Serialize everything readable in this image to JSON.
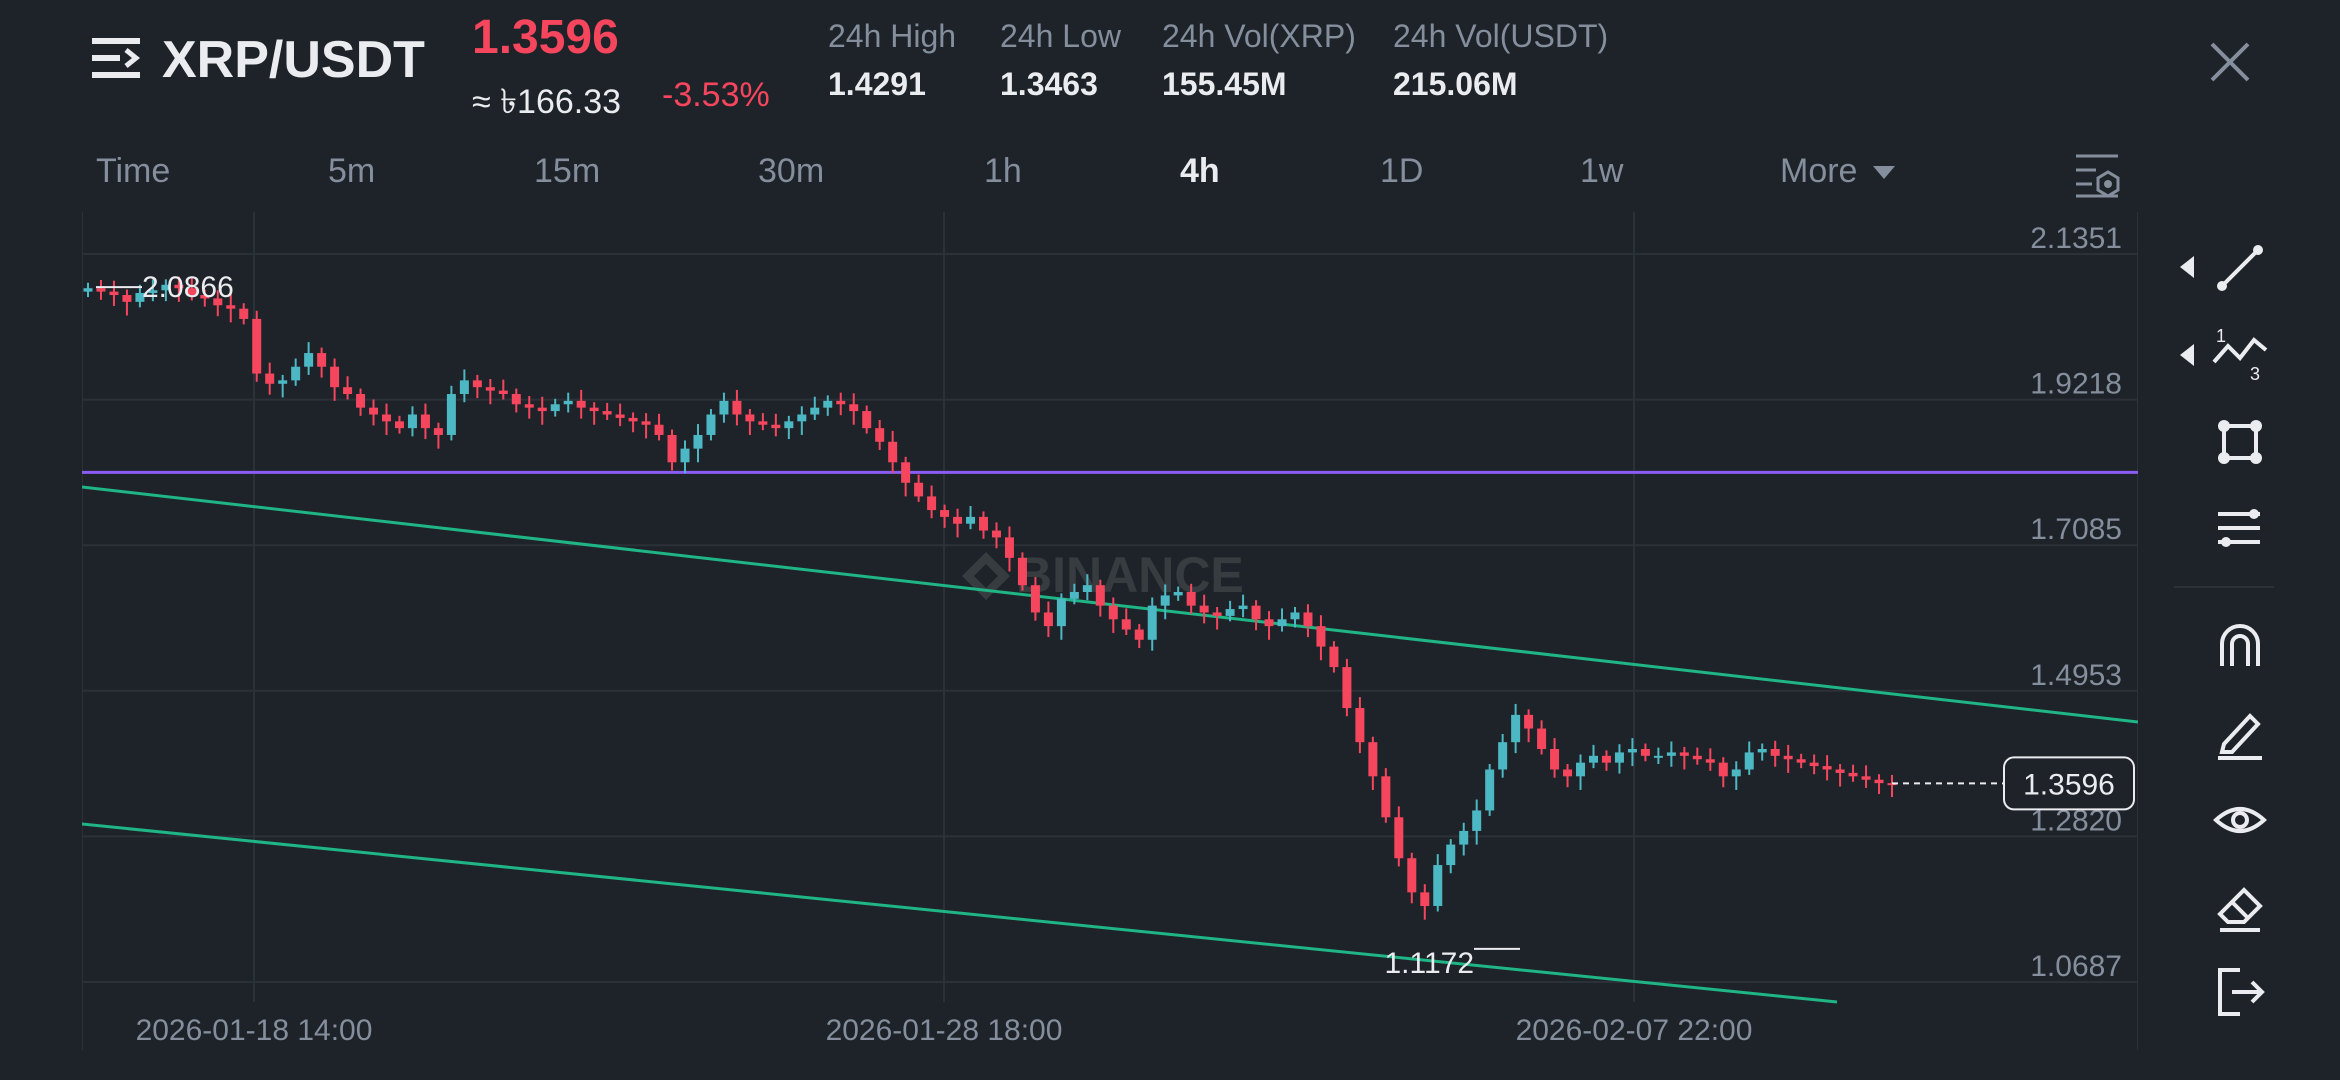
{
  "header": {
    "pair": "XRP/USDT",
    "price": "1.3596",
    "fiat_price": "≈ ৳166.33",
    "change": "-3.53%",
    "stats": [
      {
        "label": "24h High",
        "value": "1.4291"
      },
      {
        "label": "24h Low",
        "value": "1.3463"
      },
      {
        "label": "24h Vol(XRP)",
        "value": "155.45M"
      },
      {
        "label": "24h Vol(USDT)",
        "value": "215.06M"
      }
    ]
  },
  "timeframes": [
    "Time",
    "5m",
    "15m",
    "30m",
    "1h",
    "4h",
    "1D",
    "1w",
    "More"
  ],
  "active_timeframe": "4h",
  "colors": {
    "up": "#0ecb81",
    "candle_up": "#4cb8c4",
    "down": "#f6465d",
    "trendline": "#1fb585",
    "hline": "#8a5cf5",
    "grid": "#2b3139",
    "background": "#1e2329"
  },
  "toolbar_icons": [
    "trend-line-icon",
    "fibonacci-icon",
    "shape-icon",
    "indicator-icon",
    "magnet-icon",
    "pencil-icon",
    "eye-icon",
    "eraser-icon",
    "exit-icon"
  ],
  "chart_data": {
    "type": "candlestick",
    "watermark": "BINANCE",
    "y_ticks": [
      "2.1351",
      "1.9218",
      "1.7085",
      "1.4953",
      "1.2820",
      "1.0687"
    ],
    "x_ticks": [
      "2026-01-18 14:00",
      "2026-01-28 18:00",
      "2026-02-07 22:00"
    ],
    "ylim": [
      1.0687,
      2.1351
    ],
    "high_marker": "2.0866",
    "low_marker": "1.1172",
    "last_price": "1.3596",
    "horizontal_line": 1.8152,
    "closes": [
      2.085,
      2.08,
      2.075,
      2.065,
      2.078,
      2.082,
      2.09,
      2.085,
      2.075,
      2.07,
      2.06,
      2.055,
      2.04,
      1.96,
      1.945,
      1.95,
      1.97,
      1.99,
      1.97,
      1.94,
      1.93,
      1.91,
      1.9,
      1.89,
      1.88,
      1.9,
      1.88,
      1.87,
      1.93,
      1.95,
      1.94,
      1.935,
      1.93,
      1.915,
      1.91,
      1.905,
      1.915,
      1.92,
      1.91,
      1.905,
      1.9,
      1.895,
      1.89,
      1.885,
      1.87,
      1.83,
      1.85,
      1.87,
      1.9,
      1.92,
      1.9,
      1.89,
      1.885,
      1.88,
      1.89,
      1.9,
      1.91,
      1.92,
      1.915,
      1.905,
      1.88,
      1.86,
      1.83,
      1.8,
      1.78,
      1.76,
      1.75,
      1.74,
      1.75,
      1.73,
      1.72,
      1.69,
      1.65,
      1.61,
      1.59,
      1.63,
      1.64,
      1.65,
      1.62,
      1.6,
      1.585,
      1.57,
      1.62,
      1.635,
      1.64,
      1.62,
      1.61,
      1.605,
      1.615,
      1.62,
      1.6,
      1.59,
      1.6,
      1.61,
      1.59,
      1.56,
      1.53,
      1.47,
      1.42,
      1.37,
      1.31,
      1.25,
      1.2,
      1.18,
      1.24,
      1.27,
      1.29,
      1.32,
      1.38,
      1.42,
      1.46,
      1.44,
      1.41,
      1.38,
      1.37,
      1.39,
      1.4,
      1.39,
      1.405,
      1.41,
      1.4,
      1.4,
      1.405,
      1.4,
      1.395,
      1.39,
      1.37,
      1.38,
      1.405,
      1.41,
      1.4,
      1.395,
      1.39,
      1.385,
      1.38,
      1.375,
      1.37,
      1.365,
      1.36,
      1.3596
    ]
  }
}
